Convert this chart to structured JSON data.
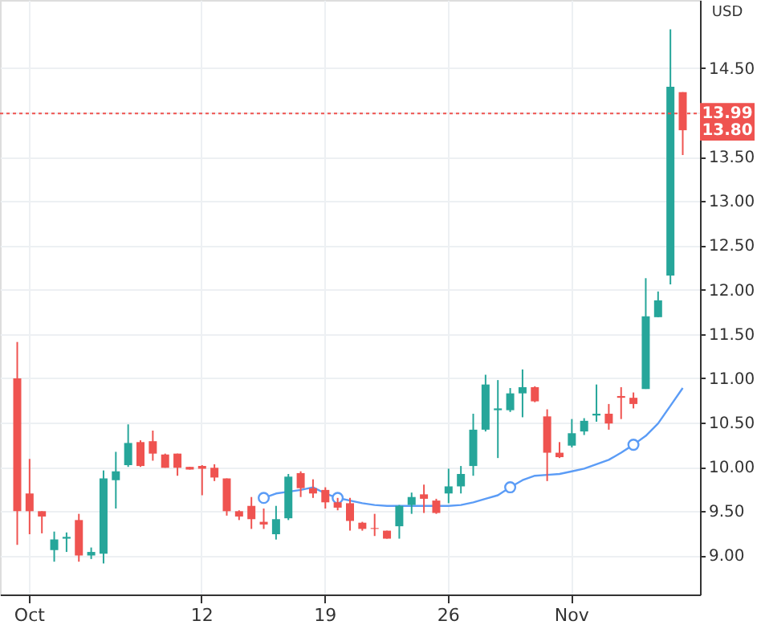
{
  "chart_data": {
    "type": "candlestick",
    "categories": [
      null,
      "Oct",
      null,
      null,
      null,
      null,
      null,
      null,
      null,
      null,
      null,
      null,
      null,
      null,
      null,
      "12",
      null,
      null,
      null,
      null,
      null,
      null,
      null,
      null,
      null,
      "19",
      null,
      null,
      null,
      null,
      null,
      null,
      null,
      null,
      null,
      "26",
      null,
      null,
      null,
      null,
      null,
      null,
      null,
      null,
      null,
      "Nov",
      null,
      null,
      null,
      null,
      null,
      null,
      null,
      null,
      null
    ],
    "ohlc": [
      [
        11.0,
        11.41,
        9.12,
        9.5
      ],
      [
        9.7,
        10.09,
        9.24,
        9.5
      ],
      [
        9.5,
        9.5,
        9.25,
        9.44
      ],
      [
        9.06,
        9.27,
        8.93,
        9.18
      ],
      [
        9.19,
        9.26,
        9.04,
        9.21
      ],
      [
        9.4,
        9.47,
        8.93,
        9.0
      ],
      [
        9.0,
        9.09,
        8.96,
        9.04
      ],
      [
        9.02,
        9.96,
        8.91,
        9.87
      ],
      [
        9.85,
        10.17,
        9.53,
        9.95
      ],
      [
        10.02,
        10.48,
        10.0,
        10.27
      ],
      [
        10.28,
        10.3,
        10.0,
        10.01
      ],
      [
        10.29,
        10.41,
        10.07,
        10.15
      ],
      [
        10.14,
        10.15,
        9.99,
        9.99
      ],
      [
        10.15,
        10.15,
        9.9,
        9.99
      ],
      [
        10.0,
        10.0,
        9.97,
        9.97
      ],
      [
        10.01,
        10.02,
        9.68,
        9.98
      ],
      [
        9.99,
        10.03,
        9.84,
        9.88
      ],
      [
        9.87,
        9.87,
        9.45,
        9.5
      ],
      [
        9.5,
        9.51,
        9.4,
        9.44
      ],
      [
        9.56,
        9.66,
        9.3,
        9.41
      ],
      [
        9.38,
        9.53,
        9.3,
        9.35
      ],
      [
        9.24,
        9.56,
        9.18,
        9.41
      ],
      [
        9.42,
        9.92,
        9.4,
        9.89
      ],
      [
        9.93,
        9.95,
        9.66,
        9.76
      ],
      [
        9.76,
        9.86,
        9.65,
        9.7
      ],
      [
        9.74,
        9.77,
        9.53,
        9.6
      ],
      [
        9.6,
        9.65,
        9.51,
        9.54
      ],
      [
        9.59,
        9.65,
        9.28,
        9.39
      ],
      [
        9.37,
        9.38,
        9.28,
        9.3
      ],
      [
        9.31,
        9.47,
        9.22,
        9.3
      ],
      [
        9.28,
        9.28,
        9.19,
        9.19
      ],
      [
        9.33,
        9.57,
        9.19,
        9.56
      ],
      [
        9.57,
        9.71,
        9.47,
        9.66
      ],
      [
        9.69,
        9.8,
        9.48,
        9.64
      ],
      [
        9.62,
        9.64,
        9.47,
        9.48
      ],
      [
        9.7,
        9.98,
        9.59,
        9.78
      ],
      [
        9.78,
        10.01,
        9.7,
        9.92
      ],
      [
        10.01,
        10.6,
        9.9,
        10.42
      ],
      [
        10.42,
        11.04,
        10.4,
        10.93
      ],
      [
        10.64,
        10.98,
        10.1,
        10.66
      ],
      [
        10.64,
        10.89,
        10.62,
        10.83
      ],
      [
        10.83,
        11.1,
        10.56,
        10.9
      ],
      [
        10.9,
        10.91,
        10.73,
        10.74
      ],
      [
        10.57,
        10.65,
        9.84,
        10.16
      ],
      [
        10.16,
        10.28,
        10.1,
        10.11
      ],
      [
        10.24,
        10.54,
        10.22,
        10.38
      ],
      [
        10.4,
        10.55,
        10.36,
        10.52
      ],
      [
        10.58,
        10.93,
        10.51,
        10.6
      ],
      [
        10.6,
        10.71,
        10.42,
        10.49
      ],
      [
        10.8,
        10.9,
        10.54,
        10.78
      ],
      [
        10.78,
        10.84,
        10.66,
        10.71
      ],
      [
        10.88,
        12.13,
        10.88,
        11.7
      ],
      [
        11.69,
        11.98,
        11.69,
        11.88
      ],
      [
        12.16,
        14.94,
        12.06,
        14.29
      ],
      [
        14.23,
        14.23,
        13.52,
        13.8
      ]
    ],
    "colors": [
      "#ef5350",
      "#ef5350",
      "#ef5350",
      "#26a69a",
      "#26a69a",
      "#ef5350",
      "#26a69a",
      "#26a69a",
      "#26a69a",
      "#26a69a",
      "#ef5350",
      "#ef5350",
      "#ef5350",
      "#ef5350",
      "#ef5350",
      "#ef5350",
      "#ef5350",
      "#ef5350",
      "#ef5350",
      "#ef5350",
      "#ef5350",
      "#26a69a",
      "#26a69a",
      "#ef5350",
      "#ef5350",
      "#ef5350",
      "#ef5350",
      "#ef5350",
      "#ef5350",
      "#ef5350",
      "#ef5350",
      "#26a69a",
      "#26a69a",
      "#ef5350",
      "#ef5350",
      "#26a69a",
      "#26a69a",
      "#26a69a",
      "#26a69a",
      "#26a69a",
      "#26a69a",
      "#26a69a",
      "#ef5350",
      "#ef5350",
      "#ef5350",
      "#26a69a",
      "#26a69a",
      "#26a69a",
      "#ef5350",
      "#ef5350",
      "#ef5350",
      "#26a69a",
      "#26a69a",
      "#26a69a",
      "#ef5350"
    ],
    "series": [
      {
        "type": "line",
        "color": "#5b9cf6",
        "marker": "none",
        "values": [
          null,
          null,
          null,
          null,
          null,
          null,
          null,
          null,
          null,
          null,
          null,
          null,
          null,
          null,
          null,
          null,
          null,
          null,
          null,
          null,
          9.65,
          9.7,
          9.72,
          9.74,
          9.77,
          9.7,
          9.65,
          9.62,
          9.59,
          9.57,
          9.56,
          9.56,
          9.56,
          9.56,
          9.56,
          9.56,
          9.57,
          9.6,
          9.64,
          9.68,
          9.77,
          9.85,
          9.9,
          9.91,
          9.92,
          9.95,
          9.98,
          10.03,
          10.08,
          10.16,
          10.25,
          10.35,
          10.49,
          10.69,
          10.89
        ]
      },
      {
        "type": "scatter",
        "color": "#5b9cf6",
        "marker": "circle",
        "values": [
          null,
          null,
          null,
          null,
          null,
          null,
          null,
          null,
          null,
          null,
          null,
          null,
          null,
          null,
          null,
          null,
          null,
          null,
          null,
          null,
          9.65,
          null,
          null,
          null,
          null,
          null,
          9.65,
          null,
          null,
          null,
          null,
          null,
          null,
          null,
          null,
          null,
          null,
          null,
          null,
          null,
          9.77,
          null,
          null,
          null,
          null,
          null,
          null,
          null,
          null,
          null,
          10.25,
          null,
          null,
          null,
          null
        ]
      }
    ],
    "ylim": [
      8.56,
      15.27
    ],
    "yticks": [
      {
        "value": 9,
        "label": "9.00"
      },
      {
        "value": 9.5,
        "label": "9.50"
      },
      {
        "value": 10,
        "label": "10.00"
      },
      {
        "value": 10.5,
        "label": "10.50"
      },
      {
        "value": 11,
        "label": "11.00"
      },
      {
        "value": 11.5,
        "label": "11.50"
      },
      {
        "value": 12,
        "label": "12.00"
      },
      {
        "value": 12.5,
        "label": "12.50"
      },
      {
        "value": 13,
        "label": "13.00"
      },
      {
        "value": 13.5,
        "label": "13.50"
      },
      {
        "value": 14,
        "label": null
      },
      {
        "value": 14.5,
        "label": "14.50"
      }
    ],
    "grid": true,
    "ref_lines": [
      {
        "axis": "y",
        "value": 13.99,
        "label": "13.99",
        "color": "#ef5350",
        "line_style": "dotted"
      }
    ],
    "annotations": [
      "USD",
      {
        "text": "13.80",
        "y": 13.8
      }
    ]
  }
}
